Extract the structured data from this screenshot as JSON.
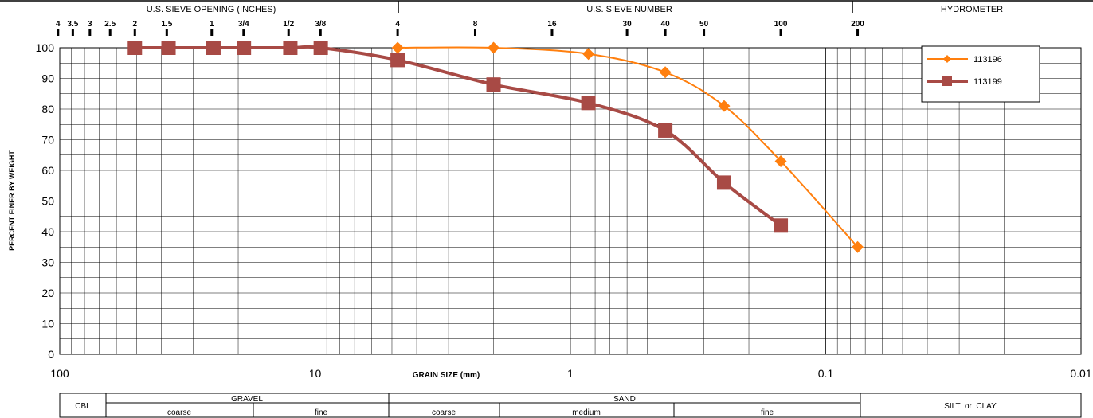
{
  "header": {
    "sieve_opening_label": "U.S. SIEVE OPENING (INCHES)",
    "sieve_number_label": "U.S. SIEVE NUMBER",
    "hydrometer_label": "HYDROMETER",
    "sieve_openings": [
      {
        "label": "4",
        "mm": 101.6
      },
      {
        "label": "3.5",
        "mm": 88.9
      },
      {
        "label": "3",
        "mm": 76.2
      },
      {
        "label": "2.5",
        "mm": 63.5
      },
      {
        "label": "2",
        "mm": 50.8
      },
      {
        "label": "1.5",
        "mm": 38.1
      },
      {
        "label": "1",
        "mm": 25.4
      },
      {
        "label": "3/4",
        "mm": 19.05
      },
      {
        "label": "1/2",
        "mm": 12.7
      },
      {
        "label": "3/8",
        "mm": 9.525
      }
    ],
    "sieve_numbers": [
      {
        "label": "4",
        "mm": 4.75
      },
      {
        "label": "8",
        "mm": 2.36
      },
      {
        "label": "16",
        "mm": 1.18
      },
      {
        "label": "30",
        "mm": 0.6
      },
      {
        "label": "40",
        "mm": 0.425
      },
      {
        "label": "50",
        "mm": 0.3
      },
      {
        "label": "100",
        "mm": 0.15
      },
      {
        "label": "200",
        "mm": 0.075
      }
    ]
  },
  "classification": {
    "cobble": "CBL",
    "gravel": "GRAVEL",
    "sand": "SAND",
    "silt_clay": "SILT  or  CLAY",
    "gravel_coarse": "coarse",
    "gravel_fine": "fine",
    "sand_coarse": "coarse",
    "sand_medium": "medium",
    "sand_fine": "fine"
  },
  "chart_data": {
    "type": "line",
    "title": "",
    "xlabel": "GRAIN SIZE (mm)",
    "ylabel": "PERCENT FINER BY WEIGHT",
    "x_scale": "log",
    "x_reversed": true,
    "xlim": [
      100,
      0.01
    ],
    "ylim": [
      0,
      100
    ],
    "x_ticks": [
      {
        "value": 100,
        "label": "100"
      },
      {
        "value": 10,
        "label": "10"
      },
      {
        "value": 1,
        "label": "1"
      },
      {
        "value": 0.1,
        "label": "0.1"
      },
      {
        "value": 0.01,
        "label": "0.01"
      }
    ],
    "y_ticks": [
      0,
      10,
      20,
      30,
      40,
      50,
      60,
      70,
      80,
      90,
      100
    ],
    "grid": true,
    "legend_position": "top-right",
    "series": [
      {
        "name": "113196",
        "color": "#ff7f0e",
        "marker": "diamond",
        "x": [
          4.75,
          2.0,
          0.85,
          0.425,
          0.25,
          0.15,
          0.075
        ],
        "y": [
          100,
          100,
          98,
          92,
          81,
          63,
          35
        ]
      },
      {
        "name": "113199",
        "color": "#a84a45",
        "marker": "square",
        "x": [
          50.8,
          37.5,
          25.0,
          19.0,
          12.5,
          9.5,
          4.75,
          2.0,
          0.85,
          0.425,
          0.25,
          0.15
        ],
        "y": [
          100,
          100,
          100,
          100,
          100,
          100,
          96,
          88,
          82,
          73,
          56,
          42
        ]
      }
    ]
  }
}
